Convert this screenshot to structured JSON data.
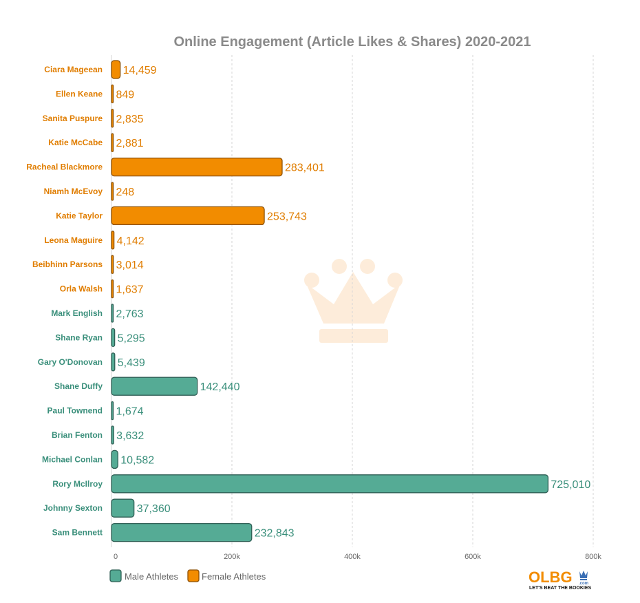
{
  "chart_data": {
    "type": "bar",
    "orientation": "horizontal",
    "title": "Online Engagement (Article Likes & Shares) 2020-2021",
    "categories": [
      "Ciara Mageean",
      "Ellen Keane",
      "Sanita Puspure",
      "Katie McCabe",
      "Racheal Blackmore",
      "Niamh McEvoy",
      "Katie Taylor",
      "Leona Maguire",
      "Beibhinn Parsons",
      "Orla Walsh",
      "Mark English",
      "Shane Ryan",
      "Gary O'Donovan",
      "Shane Duffy",
      "Paul Townend",
      "Brian Fenton",
      "Michael Conlan",
      "Rory McIlroy",
      "Johnny Sexton",
      "Sam Bennett"
    ],
    "values": [
      14459,
      849,
      2835,
      2881,
      283401,
      248,
      253743,
      4142,
      3014,
      1637,
      2763,
      5295,
      5439,
      142440,
      1674,
      3632,
      10582,
      725010,
      37360,
      232843
    ],
    "value_labels": [
      "14,459",
      "849",
      "2,835",
      "2,881",
      "283,401",
      "248",
      "253,743",
      "4,142",
      "3,014",
      "1,637",
      "2,763",
      "5,295",
      "5,439",
      "142,440",
      "1,674",
      "3,632",
      "10,582",
      "725,010",
      "37,360",
      "232,843"
    ],
    "groups": [
      "female",
      "female",
      "female",
      "female",
      "female",
      "female",
      "female",
      "female",
      "female",
      "female",
      "male",
      "male",
      "male",
      "male",
      "male",
      "male",
      "male",
      "male",
      "male",
      "male"
    ],
    "series": [
      {
        "key": "male",
        "name": "Male Athletes",
        "color": "#55ab95",
        "stroke": "#2f5f55"
      },
      {
        "key": "female",
        "name": "Female Athletes",
        "color": "#f28c00",
        "stroke": "#8c4f00"
      }
    ],
    "xlim": [
      0,
      800000
    ],
    "x_ticks": [
      0,
      200000,
      400000,
      600000,
      800000
    ],
    "x_tick_labels": [
      "0",
      "200k",
      "400k",
      "600k",
      "800k"
    ],
    "grid": true,
    "legend": "bottom-left",
    "xlabel": "",
    "ylabel": ""
  },
  "branding": {
    "logo_text": "OLBG",
    "logo_domain": ".com",
    "tagline": "LET'S BEAT THE BOOKIES",
    "logo_color": "#f28c00",
    "crown_color": "#3a6fb5",
    "watermark": "crown-icon"
  }
}
